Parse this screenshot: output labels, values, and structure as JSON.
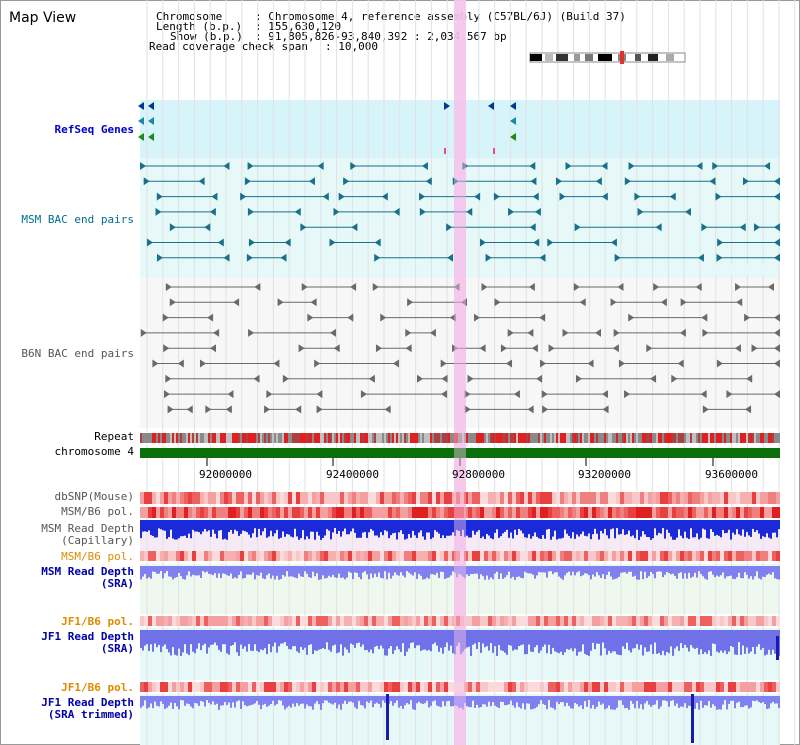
{
  "header": {
    "title": "Map View",
    "chromosome_key": "Chromosome",
    "chromosome_value": ": Chromosome 4, reference assembly (C57BL/6J) (Build 37)",
    "length_key": "Length (b.p.)",
    "length_value": ": 155,630,120",
    "show_key": "Show (b.p.)",
    "show_value": ": 91,805,826-93,840,392 : 2,034,567 bp",
    "coverage_key": "Read coverage check span",
    "coverage_value": ": 10,000"
  },
  "tracks": {
    "refseq": "RefSeq Genes",
    "msm_bac": "MSM BAC end pairs",
    "b6n_bac": "B6N BAC end pairs",
    "repeat": "Repeat",
    "chromosome": "chromosome 4",
    "dbsnp": "dbSNP(Mouse)",
    "msm_b6_pol_1": "MSM/B6 pol.",
    "msm_read_depth_cap_1": "MSM Read Depth",
    "msm_read_depth_cap_2": "(Capillary)",
    "msm_b6_pol_2": "MSM/B6 pol.",
    "msm_read_depth_sra_1": "MSM Read Depth",
    "msm_read_depth_sra_2": "(SRA)",
    "jf1_b6_pol_1": "JF1/B6 pol.",
    "jf1_read_depth_sra_1": "JF1 Read Depth",
    "jf1_read_depth_sra_2": "(SRA)",
    "jf1_b6_pol_2": "JF1/B6 pol.",
    "jf1_read_depth_trim_1": "JF1 Read Depth",
    "jf1_read_depth_trim_2": "(SRA trimmed)"
  },
  "axis": {
    "ticks": [
      "92000000",
      "92400000",
      "92800000",
      "93200000",
      "93600000"
    ]
  },
  "colors": {
    "refseq_label": "#0000cc",
    "msm_bac_label": "#006e8c",
    "b6n_bac_label": "#555555",
    "pol_label": "#e08a00",
    "depth_label": "#0000aa",
    "highlight": "#f4c6ec",
    "chromosome_bar": "#0a6e0a"
  }
}
